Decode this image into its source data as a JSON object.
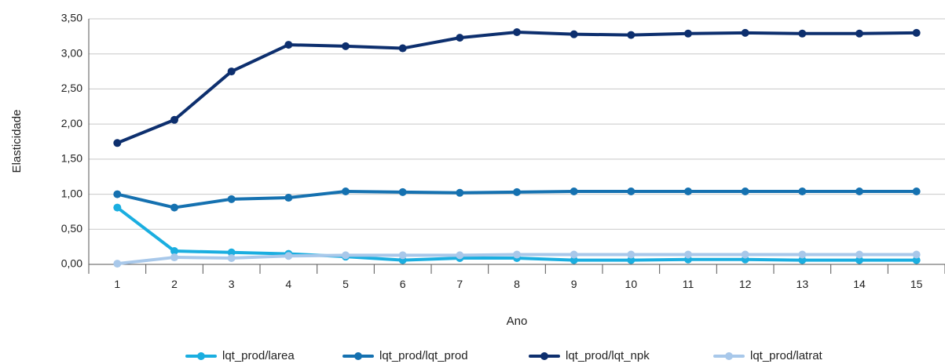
{
  "chart_data": {
    "type": "line",
    "title": "",
    "xlabel": "Ano",
    "ylabel": "Elasticidade",
    "categories": [
      "1",
      "2",
      "3",
      "4",
      "5",
      "6",
      "7",
      "8",
      "9",
      "10",
      "11",
      "12",
      "13",
      "14",
      "15"
    ],
    "ylim": [
      0,
      3.5
    ],
    "yticks": [
      "0,00",
      "0,50",
      "1,00",
      "1,50",
      "2,00",
      "2,50",
      "3,00",
      "3,50"
    ],
    "grid": true,
    "legend_position": "bottom",
    "series": [
      {
        "name": "lqt_prod/larea",
        "color": "#1aaee0",
        "values": [
          0.81,
          0.19,
          0.17,
          0.15,
          0.11,
          0.06,
          0.09,
          0.09,
          0.06,
          0.06,
          0.07,
          0.07,
          0.06,
          0.06,
          0.06
        ]
      },
      {
        "name": "lqt_prod/lqt_prod",
        "color": "#1571b0",
        "values": [
          1.0,
          0.81,
          0.93,
          0.95,
          1.04,
          1.03,
          1.02,
          1.03,
          1.04,
          1.04,
          1.04,
          1.04,
          1.04,
          1.04,
          1.04
        ]
      },
      {
        "name": "lqt_prod/lqt_npk",
        "color": "#0d2f6e",
        "values": [
          1.73,
          2.06,
          2.75,
          3.13,
          3.11,
          3.08,
          3.23,
          3.31,
          3.28,
          3.27,
          3.29,
          3.3,
          3.29,
          3.29,
          3.3
        ]
      },
      {
        "name": "lqt_prod/latrat",
        "color": "#a8c8ea",
        "values": [
          0.01,
          0.1,
          0.09,
          0.12,
          0.13,
          0.13,
          0.13,
          0.14,
          0.14,
          0.14,
          0.14,
          0.14,
          0.14,
          0.14,
          0.14
        ]
      }
    ]
  }
}
